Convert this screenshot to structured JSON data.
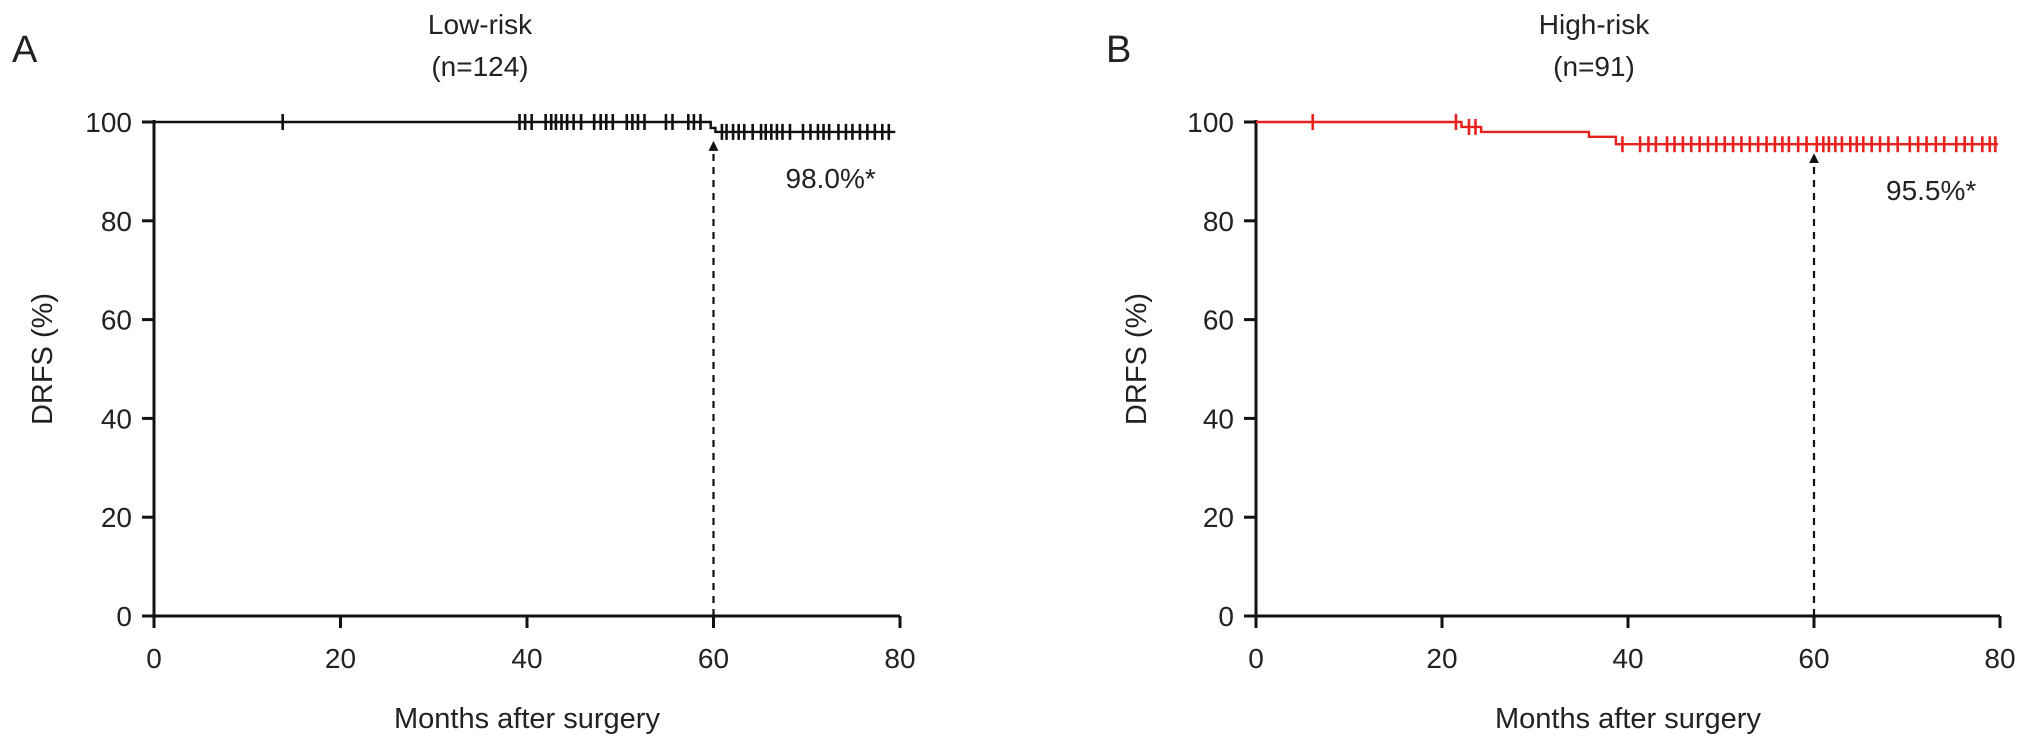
{
  "chart_data": [
    {
      "panel_label": "A",
      "type": "line",
      "step": true,
      "title": "Low-risk",
      "subtitle": "(n=124)",
      "xlabel": "Months after surgery",
      "ylabel": "DRFS (%)",
      "xlim": [
        0,
        80
      ],
      "ylim": [
        0,
        100
      ],
      "xticks": [
        0,
        20,
        40,
        60,
        80
      ],
      "yticks": [
        0,
        20,
        40,
        60,
        80,
        100
      ],
      "grid": false,
      "color": "#111111",
      "steps": [
        {
          "x": 0,
          "y": 100
        },
        {
          "x": 59.7,
          "y": 100
        },
        {
          "x": 59.7,
          "y": 98.8
        },
        {
          "x": 60.2,
          "y": 98.8
        },
        {
          "x": 60.2,
          "y": 98.0
        },
        {
          "x": 79.5,
          "y": 98.0
        }
      ],
      "censored_x": [
        13.8,
        39.2,
        39.8,
        40.5,
        42.0,
        42.6,
        43.1,
        43.7,
        44.3,
        45.0,
        45.8,
        47.2,
        47.9,
        48.5,
        49.2,
        50.7,
        51.3,
        51.9,
        52.6,
        54.9,
        55.6,
        57.3,
        57.9,
        58.6,
        60.9,
        61.4,
        62.1,
        62.7,
        63.3,
        64.2,
        65.1,
        65.6,
        66.2,
        66.8,
        67.4,
        68.2,
        69.6,
        70.4,
        71.2,
        71.8,
        72.4,
        73.4,
        74.2,
        74.9,
        75.7,
        76.5,
        77.3,
        78.1,
        78.8
      ],
      "annotation": {
        "x": 60,
        "y": 98.0,
        "text": "98.0%*"
      }
    },
    {
      "panel_label": "B",
      "type": "line",
      "step": true,
      "title": "High-risk",
      "subtitle": "(n=91)",
      "xlabel": "Months after surgery",
      "ylabel": "DRFS (%)",
      "xlim": [
        0,
        80
      ],
      "ylim": [
        0,
        100
      ],
      "xticks": [
        0,
        20,
        40,
        60,
        80
      ],
      "yticks": [
        0,
        20,
        40,
        60,
        80,
        100
      ],
      "grid": false,
      "color": "#e8201e",
      "steps": [
        {
          "x": 0,
          "y": 100
        },
        {
          "x": 22.1,
          "y": 100
        },
        {
          "x": 22.1,
          "y": 99.0
        },
        {
          "x": 24.2,
          "y": 99.0
        },
        {
          "x": 24.2,
          "y": 98.0
        },
        {
          "x": 35.8,
          "y": 98.0
        },
        {
          "x": 35.8,
          "y": 97.0
        },
        {
          "x": 38.7,
          "y": 97.0
        },
        {
          "x": 38.7,
          "y": 95.5
        },
        {
          "x": 79.8,
          "y": 95.5
        }
      ],
      "censored_x": [
        6.1,
        21.5,
        22.9,
        23.6,
        39.4,
        41.3,
        42.2,
        43.0,
        44.2,
        45.0,
        45.9,
        46.8,
        47.7,
        48.6,
        49.5,
        50.4,
        51.3,
        52.2,
        53.1,
        54.0,
        54.9,
        55.8,
        56.6,
        57.3,
        58.3,
        59.2,
        60.3,
        61.0,
        61.6,
        62.3,
        63.0,
        63.9,
        64.6,
        65.3,
        66.2,
        67.1,
        68.0,
        69.0,
        70.3,
        71.2,
        72.1,
        73.1,
        74.0,
        75.3,
        76.2,
        77.0,
        78.1,
        78.9,
        79.5
      ],
      "annotation": {
        "x": 60,
        "y": 95.5,
        "text": "95.5%*"
      }
    }
  ]
}
